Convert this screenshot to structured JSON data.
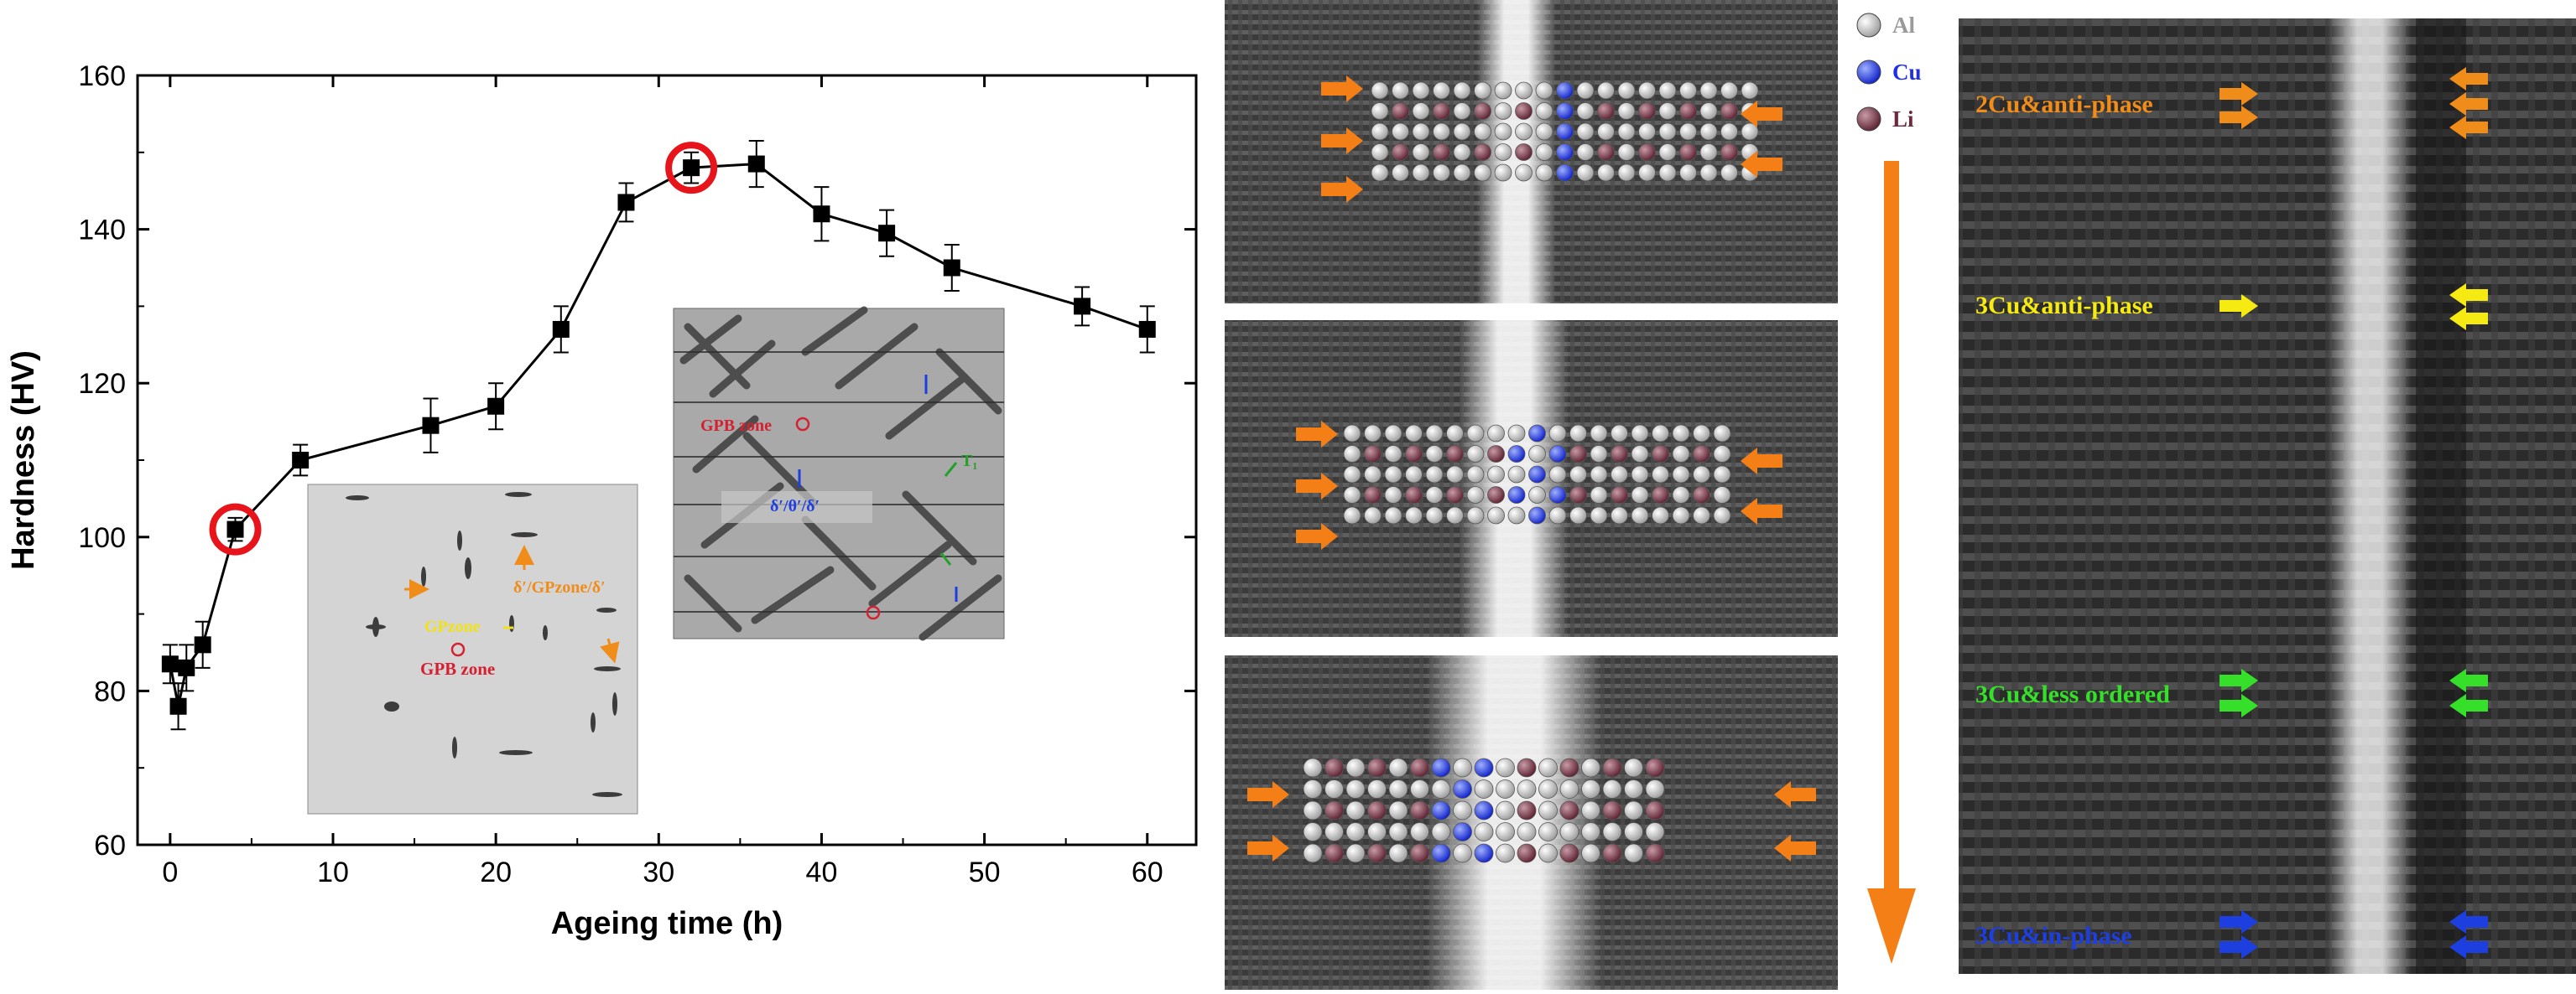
{
  "chart_data": {
    "type": "line",
    "xlabel": "Ageing time (h)",
    "ylabel": "Hardness (HV)",
    "xlim": [
      -2,
      63
    ],
    "ylim": [
      60,
      160
    ],
    "x_ticks": [
      0,
      10,
      20,
      30,
      40,
      50,
      60
    ],
    "y_ticks": [
      60,
      80,
      100,
      120,
      140,
      160
    ],
    "grid": false,
    "series": [
      {
        "marker": "square",
        "color": "#000000",
        "x": [
          0,
          0.5,
          1,
          2,
          4,
          8,
          16,
          20,
          24,
          28,
          32,
          36,
          40,
          44,
          48,
          56,
          60
        ],
        "y": [
          83.5,
          78,
          83,
          86,
          101,
          110,
          114.5,
          117,
          127,
          143.5,
          148,
          148.5,
          142,
          139.5,
          135,
          130,
          127
        ],
        "err": [
          2.5,
          3,
          3,
          3,
          1.5,
          2,
          3.5,
          3,
          3,
          2.5,
          2,
          3,
          3.5,
          3,
          3,
          2.5,
          3
        ]
      }
    ],
    "highlighted_points": [
      {
        "x": 4,
        "y": 101,
        "color": "#e8141b"
      },
      {
        "x": 32,
        "y": 148,
        "color": "#e8141b"
      }
    ]
  },
  "insets": {
    "left": {
      "labels": {
        "delta": "δ′/GPzone/δ′",
        "gp": "GPzone",
        "gpb": "GPB zone"
      },
      "colors": {
        "delta": "#f08c1a",
        "gp": "#f0e21a",
        "gpb": "#d42030"
      }
    },
    "right": {
      "labels": {
        "gpb": "GPB zone",
        "composite": "δ′/θ′/δ′",
        "t1": "T₁"
      },
      "colors": {
        "gpb": "#d42030",
        "composite": "#1d3fe0",
        "t1": "#22a02a"
      }
    }
  },
  "legend": {
    "items": [
      {
        "label": "Al",
        "color": "#bcbcbc"
      },
      {
        "label": "Cu",
        "color": "#1f2fe8"
      },
      {
        "label": "Li",
        "color": "#6e2a3a"
      }
    ]
  },
  "annotations": [
    {
      "text": "2Cu&anti-phase",
      "color": "#f08c1a"
    },
    {
      "text": "3Cu&anti-phase",
      "color": "#f5ea12"
    },
    {
      "text": "3Cu&less ordered",
      "color": "#36e02a"
    },
    {
      "text": "3Cu&in-phase",
      "color": "#1d3fe0"
    }
  ],
  "colors": {
    "arrow_orange": "#f57f17",
    "marker_circle": "#e8141b"
  }
}
